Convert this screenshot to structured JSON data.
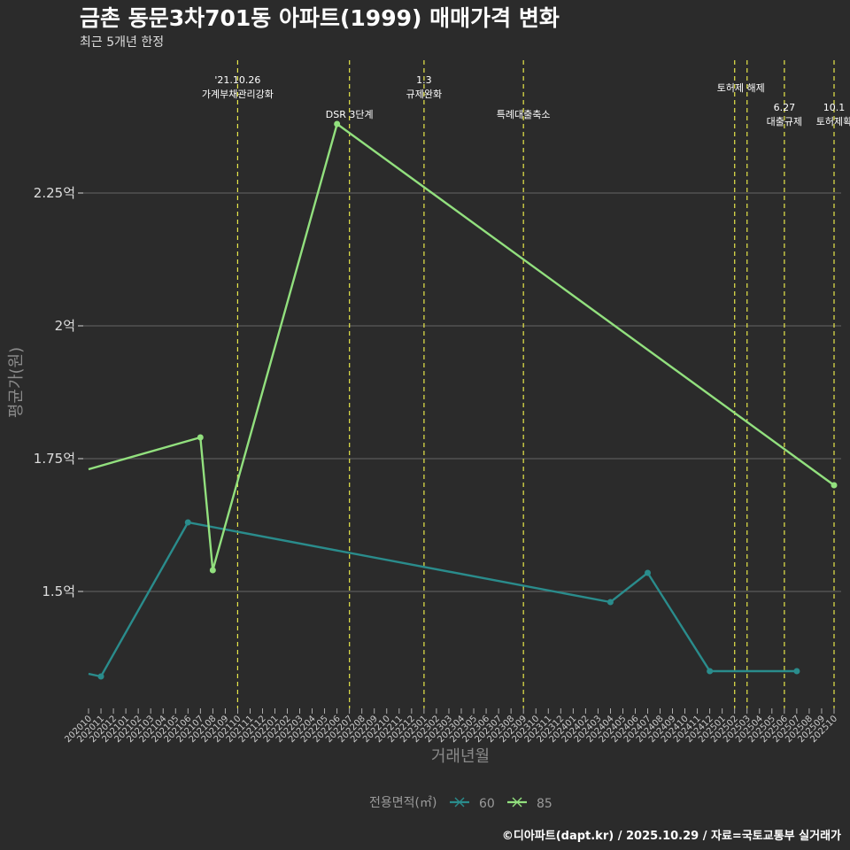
{
  "chart_data": {
    "type": "line",
    "title": "금촌 동문3차701동 아파트(1999) 매매가격 변화",
    "subtitle": "최근 5개년 한정",
    "xlabel": "거래년월",
    "ylabel": "평균가(원)",
    "y_ticks": [
      {
        "value": 1.5,
        "label": "1.5억"
      },
      {
        "value": 1.75,
        "label": "1.75억"
      },
      {
        "value": 2.0,
        "label": "2억"
      },
      {
        "value": 2.25,
        "label": "2.25억"
      }
    ],
    "ylim": [
      1.28,
      2.5
    ],
    "categories": [
      "202010",
      "202011",
      "202012",
      "202101",
      "202102",
      "202103",
      "202104",
      "202105",
      "202106",
      "202107",
      "202108",
      "202109",
      "202110",
      "202111",
      "202112",
      "202201",
      "202202",
      "202203",
      "202204",
      "202205",
      "202206",
      "202207",
      "202208",
      "202209",
      "202210",
      "202211",
      "202212",
      "202301",
      "202302",
      "202303",
      "202304",
      "202305",
      "202306",
      "202307",
      "202308",
      "202309",
      "202310",
      "202311",
      "202312",
      "202401",
      "202402",
      "202403",
      "202404",
      "202405",
      "202406",
      "202407",
      "202408",
      "202409",
      "202410",
      "202411",
      "202412",
      "202501",
      "202502",
      "202503",
      "202504",
      "202505",
      "202506",
      "202507",
      "202508",
      "202509",
      "202510"
    ],
    "series": [
      {
        "name": "60",
        "color": "#2a8c8c",
        "points": [
          {
            "x": 0,
            "y": 1.345
          },
          {
            "x": 1,
            "y": 1.34
          },
          {
            "x": 8,
            "y": 1.63
          },
          {
            "x": 42,
            "y": 1.48
          },
          {
            "x": 45,
            "y": 1.535
          },
          {
            "x": 50,
            "y": 1.35
          },
          {
            "x": 57,
            "y": 1.35
          }
        ],
        "markers": [
          1,
          8,
          42,
          45,
          50,
          57
        ]
      },
      {
        "name": "85",
        "color": "#92e07e",
        "points": [
          {
            "x": 0,
            "y": 1.73
          },
          {
            "x": 9,
            "y": 1.79
          },
          {
            "x": 10,
            "y": 1.54
          },
          {
            "x": 20,
            "y": 2.38
          },
          {
            "x": 60,
            "y": 1.7
          }
        ],
        "markers": [
          9,
          10,
          20,
          60
        ]
      }
    ],
    "vlines": [
      {
        "x": 12,
        "lines": [
          "'21.10.26",
          "가계부채관리강화"
        ],
        "row": 0
      },
      {
        "x": 21,
        "lines": [
          "DSR 3단계"
        ],
        "row": 2
      },
      {
        "x": 27,
        "lines": [
          "1.3",
          "규제완화"
        ],
        "row": 0
      },
      {
        "x": 35,
        "lines": [
          "특례대출축소"
        ],
        "row": 2
      },
      {
        "x": 52,
        "lines": [
          "토허제 해제"
        ],
        "row": 1,
        "offset": 1
      },
      {
        "x": 53,
        "lines": [],
        "row": 1
      },
      {
        "x": 56,
        "lines": [
          "6.27",
          "대출규제"
        ],
        "row": 2
      },
      {
        "x": 60,
        "lines": [
          "10.1",
          "토허제확"
        ],
        "row": 2
      }
    ],
    "legend": {
      "title": "전용면적(㎡)",
      "entries": [
        "60",
        "85"
      ]
    },
    "caption": "©디아파트(dapt.kr) / 2025.10.29 / 자료=국토교통부 실거래가",
    "colors": {
      "background": "#2b2b2b",
      "grid": "#5a5a5a",
      "vline": "#e8e84a"
    }
  }
}
